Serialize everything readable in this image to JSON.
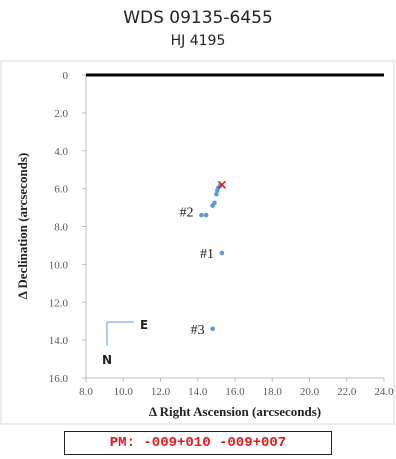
{
  "chart_data": {
    "type": "scatter",
    "title": "WDS 09135-6455",
    "subtitle": "HJ 4195",
    "xlabel": "Right Ascension (arcseconds)",
    "ylabel": "Declination (arcseconds)",
    "axis_symbol": "Δ",
    "xlim": [
      8.0,
      24.0
    ],
    "ylim": [
      0,
      16.0
    ],
    "y_inverted": true,
    "x_ticks": [
      "8.0",
      "10.0",
      "12.0",
      "14.0",
      "16.0",
      "18.0",
      "20.0",
      "22.0",
      "24.0"
    ],
    "y_ticks": [
      "0",
      "2.0",
      "4.0",
      "6.0",
      "8.0",
      "10.0",
      "12.0",
      "14.0",
      "16.0"
    ],
    "grid": false,
    "series": [
      {
        "color": "#5b9bd5",
        "points": [
          {
            "x": 15.3,
            "y": 9.4
          },
          {
            "x": 14.8,
            "y": 13.4
          },
          {
            "x": 14.2,
            "y": 7.4
          },
          {
            "x": 14.45,
            "y": 7.4
          },
          {
            "x": 14.8,
            "y": 6.9
          },
          {
            "x": 14.9,
            "y": 6.75
          },
          {
            "x": 15.05,
            "y": 6.1
          },
          {
            "x": 15.1,
            "y": 5.95
          },
          {
            "x": 15.0,
            "y": 6.3
          },
          {
            "x": 15.2,
            "y": 5.85
          }
        ]
      }
    ],
    "highlight_point": {
      "x": 15.3,
      "y": 5.8,
      "marker": "x",
      "color": "#e8171e"
    },
    "reference_line": {
      "y": 0,
      "color": "#000000"
    },
    "labels": [
      {
        "text": "#1",
        "x": 15.3,
        "y": 9.4
      },
      {
        "text": "#2",
        "x": 14.2,
        "y": 7.2
      },
      {
        "text": "#3",
        "x": 14.8,
        "y": 13.4
      }
    ],
    "compass": {
      "east": "E",
      "north": "N",
      "color": "#5b9bd5"
    }
  },
  "pm_text": "PM: -009+010 -009+007"
}
